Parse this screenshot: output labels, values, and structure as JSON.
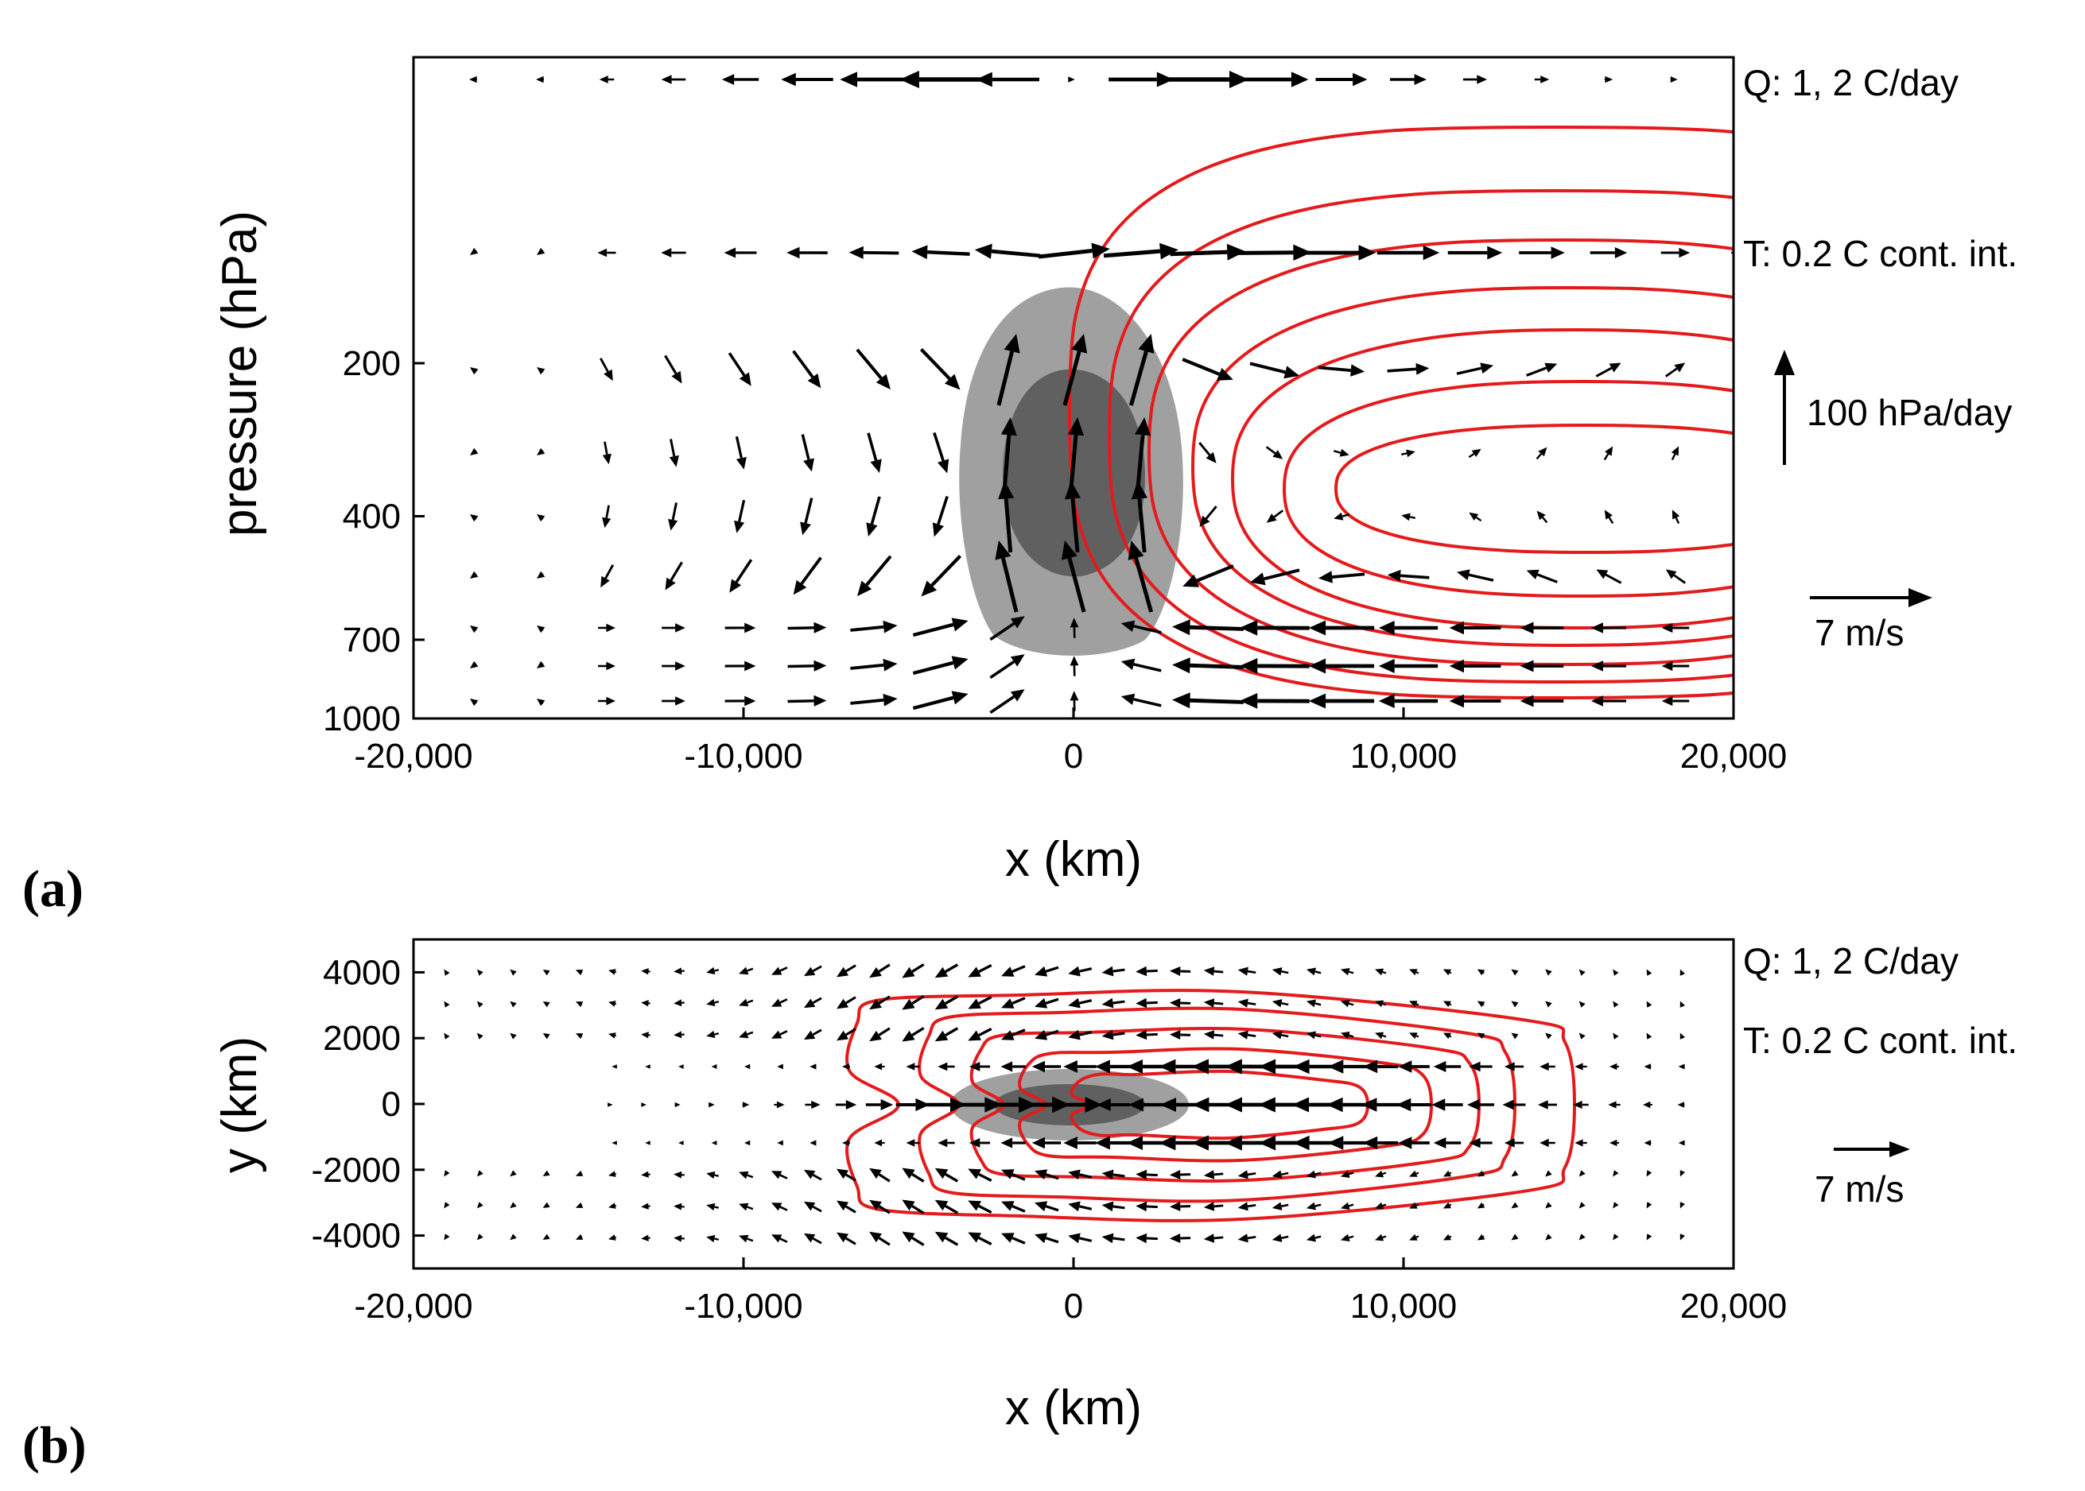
{
  "colors": {
    "contour": "#e41a1c",
    "shade_light": "#a0a0a0",
    "shade_dark": "#606060",
    "arrow": "#000000",
    "axis": "#000000"
  },
  "chart_data": [
    {
      "type": "vector-contour",
      "panel_label": "(a)",
      "title": "",
      "xlabel": "x (km)",
      "ylabel": "pressure (hPa)",
      "xlim": [
        -20000,
        20000
      ],
      "ylim": [
        1000,
        50
      ],
      "yscale": "log",
      "x_ticks": [
        -20000,
        -10000,
        0,
        10000,
        20000
      ],
      "x_tick_labels": [
        "-20,000",
        "-10,000",
        "0",
        "10,000",
        "20,000"
      ],
      "y_ticks": [
        200,
        400,
        700,
        1000
      ],
      "y_tick_labels": [
        "200",
        "400",
        "700",
        "1000"
      ],
      "annotations": [
        "Q: 1, 2 C/day",
        "T: 0.2 C cont. int."
      ],
      "reference_vectors": [
        {
          "label": "100 hPa/day",
          "direction": "up"
        },
        {
          "label": "7 m/s",
          "direction": "right"
        }
      ],
      "heating_Q_levels_C_per_day": [
        1,
        2
      ],
      "temperature_contour_interval_C": 0.2,
      "temperature_center": {
        "x": 6000,
        "p": 480
      },
      "heating_center": {
        "x": 0,
        "p": 470
      }
    },
    {
      "type": "vector-contour",
      "panel_label": "(b)",
      "title": "",
      "xlabel": "x (km)",
      "ylabel": "y (km)",
      "xlim": [
        -20000,
        20000
      ],
      "ylim": [
        -5000,
        5000
      ],
      "x_ticks": [
        -20000,
        -10000,
        0,
        10000,
        20000
      ],
      "x_tick_labels": [
        "-20,000",
        "-10,000",
        "0",
        "10,000",
        "20,000"
      ],
      "y_ticks": [
        4000,
        2000,
        0,
        -2000,
        -4000
      ],
      "y_tick_labels": [
        "4000",
        "2000",
        "0",
        "-2000",
        "-4000"
      ],
      "annotations": [
        "Q: 1, 2 C/day",
        "T: 0.2 C cont. int."
      ],
      "reference_vectors": [
        {
          "label": "7 m/s",
          "direction": "right"
        }
      ],
      "heating_Q_levels_C_per_day": [
        1,
        2
      ],
      "temperature_contour_interval_C": 0.2
    }
  ]
}
